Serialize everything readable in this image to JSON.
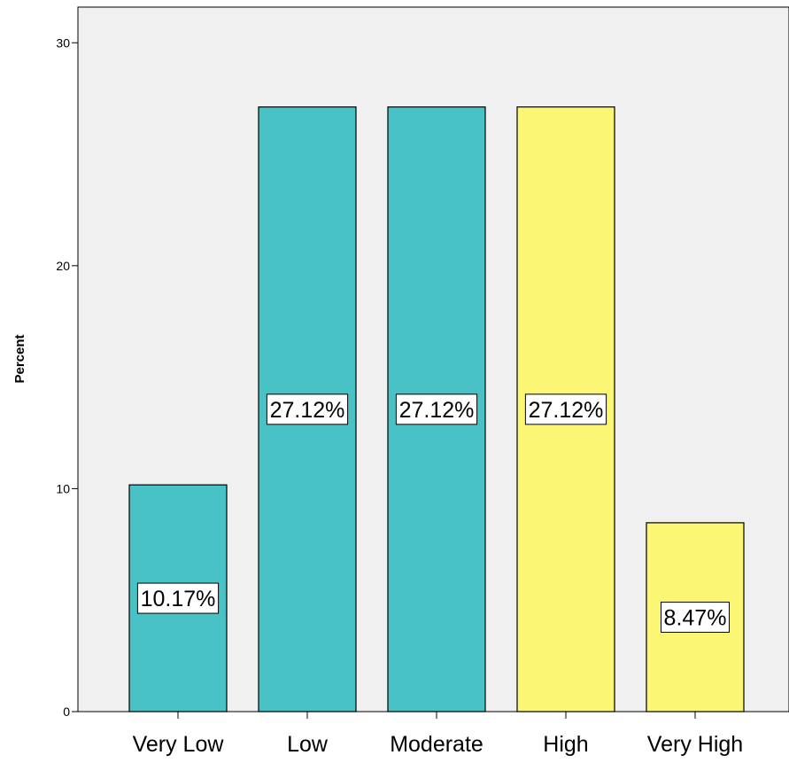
{
  "chart_data": {
    "type": "bar",
    "title": "",
    "xlabel": "",
    "ylabel": "Percent",
    "categories": [
      "Very Low",
      "Low",
      "Moderate",
      "High",
      "Very High"
    ],
    "values": [
      10.17,
      27.12,
      27.12,
      27.12,
      8.47
    ],
    "data_labels": [
      "10.17%",
      "27.12%",
      "27.12%",
      "27.12%",
      "8.47%"
    ],
    "bar_colors": [
      "#48c2c4",
      "#48c2c4",
      "#48c2c4",
      "#fbf673",
      "#fbf673"
    ],
    "plot_background": "#f0f0f0",
    "ylim": [
      0,
      31.6
    ],
    "yticks": [
      0,
      10,
      20,
      30
    ],
    "grid": false,
    "legend": "none"
  }
}
